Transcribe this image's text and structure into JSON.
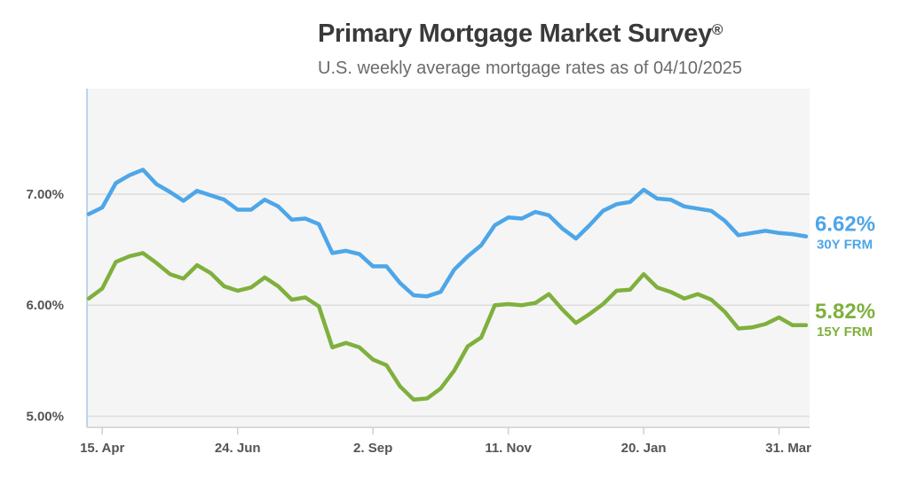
{
  "header": {
    "title": "Primary Mortgage Market Survey",
    "title_mark": "®",
    "subtitle": "U.S. weekly average mortgage rates as of 04/10/2025"
  },
  "chart_data": {
    "type": "line",
    "title": "Primary Mortgage Market Survey®",
    "subtitle": "U.S. weekly average mortgage rates as of 04/10/2025",
    "xlabel": "",
    "ylabel": "",
    "ylim": [
      4.9,
      7.95
    ],
    "yticks": [
      {
        "value": 5.0,
        "label": "5.00%"
      },
      {
        "value": 6.0,
        "label": "6.00%"
      },
      {
        "value": 7.0,
        "label": "7.00%"
      }
    ],
    "xticks": [
      {
        "index": 1,
        "label": "15. Apr"
      },
      {
        "index": 11,
        "label": "24. Jun"
      },
      {
        "index": 21,
        "label": "2. Sep"
      },
      {
        "index": 31,
        "label": "11. Nov"
      },
      {
        "index": 41,
        "label": "20. Jan"
      },
      {
        "index": 51,
        "label": "31. Mar"
      }
    ],
    "grid": true,
    "background": "#f5f5f5",
    "series": [
      {
        "name": "30Y FRM",
        "label": "30Y FRM",
        "last_value_label": "6.62%",
        "color": "#4da6e8",
        "values": [
          6.82,
          6.88,
          7.1,
          7.17,
          7.22,
          7.09,
          7.02,
          6.94,
          7.03,
          6.99,
          6.95,
          6.86,
          6.86,
          6.95,
          6.89,
          6.77,
          6.78,
          6.73,
          6.47,
          6.49,
          6.46,
          6.35,
          6.35,
          6.2,
          6.09,
          6.08,
          6.12,
          6.32,
          6.44,
          6.54,
          6.72,
          6.79,
          6.78,
          6.84,
          6.81,
          6.69,
          6.6,
          6.72,
          6.85,
          6.91,
          6.93,
          7.04,
          6.96,
          6.95,
          6.89,
          6.87,
          6.85,
          6.76,
          6.63,
          6.65,
          6.67,
          6.65,
          6.64,
          6.62
        ]
      },
      {
        "name": "15Y FRM",
        "label": "15Y FRM",
        "last_value_label": "5.82%",
        "color": "#7fb03d",
        "values": [
          6.06,
          6.15,
          6.39,
          6.44,
          6.47,
          6.38,
          6.28,
          6.24,
          6.36,
          6.29,
          6.17,
          6.13,
          6.16,
          6.25,
          6.17,
          6.05,
          6.07,
          5.99,
          5.62,
          5.66,
          5.62,
          5.51,
          5.46,
          5.27,
          5.15,
          5.16,
          5.25,
          5.41,
          5.63,
          5.71,
          6.0,
          6.01,
          6.0,
          6.02,
          6.1,
          5.96,
          5.84,
          5.92,
          6.01,
          6.13,
          6.14,
          6.28,
          6.16,
          6.12,
          6.06,
          6.1,
          6.05,
          5.94,
          5.79,
          5.8,
          5.83,
          5.89,
          5.82,
          5.82
        ]
      }
    ]
  }
}
